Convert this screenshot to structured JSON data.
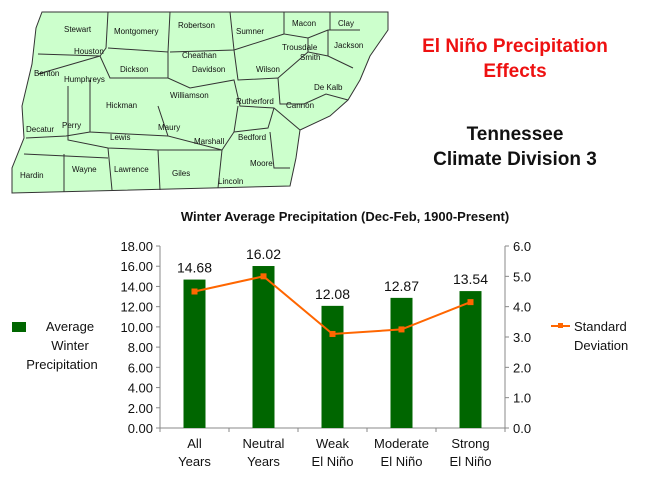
{
  "header": {
    "title_line1": "El Niño Precipitation",
    "title_line2": "Effects",
    "subtitle_line1": "Tennessee",
    "subtitle_line2": "Climate Division 3"
  },
  "map": {
    "fill": "#ccffcc",
    "stroke": "#333333",
    "counties": [
      "Stewart",
      "Montgomery",
      "Robertson",
      "Sumner",
      "Macon",
      "Clay",
      "Houston",
      "Cheathan",
      "Trousdale",
      "Smith",
      "Jackson",
      "Benton",
      "Humphreys",
      "Dickson",
      "Davidson",
      "Wilson",
      "De Kalb",
      "Williamson",
      "Rutherford",
      "Cannon",
      "Hickman",
      "Perry",
      "Decatur",
      "Lewis",
      "Maury",
      "Marshall",
      "Bedford",
      "Moore",
      "Hardin",
      "Wayne",
      "Lawrence",
      "Giles",
      "Lincoln"
    ]
  },
  "chart_data": {
    "type": "bar",
    "title": "Winter Average Precipitation (Dec-Feb, 1900-Present)",
    "categories": [
      [
        "All",
        "Years"
      ],
      [
        "Neutral",
        "Years"
      ],
      [
        "Weak",
        "El Niño"
      ],
      [
        "Moderate",
        "El Niño"
      ],
      [
        "Strong",
        "El Niño"
      ]
    ],
    "series": [
      {
        "name": "Average Winter Precipitation",
        "type": "bar",
        "axis": "left",
        "color": "#006600",
        "values": [
          14.68,
          16.02,
          12.08,
          12.87,
          13.54
        ],
        "labels": [
          "14.68",
          "16.02",
          "12.08",
          "12.87",
          "13.54"
        ]
      },
      {
        "name": "Standard Deviation",
        "type": "line",
        "axis": "right",
        "color": "#ff6600",
        "values": [
          4.5,
          5.0,
          3.1,
          3.25,
          4.15
        ]
      }
    ],
    "y_left": {
      "range": [
        0,
        18
      ],
      "ticks": [
        "0.00",
        "2.00",
        "4.00",
        "6.00",
        "8.00",
        "10.00",
        "12.00",
        "14.00",
        "16.00",
        "18.00"
      ]
    },
    "y_right": {
      "range": [
        0,
        6
      ],
      "ticks": [
        "0.0",
        "1.0",
        "2.0",
        "3.0",
        "4.0",
        "5.0",
        "6.0"
      ]
    },
    "legend": {
      "left": [
        "Average",
        "Winter",
        "Precipitation"
      ],
      "right": [
        "Standard",
        "Deviation"
      ]
    },
    "grid": false
  }
}
